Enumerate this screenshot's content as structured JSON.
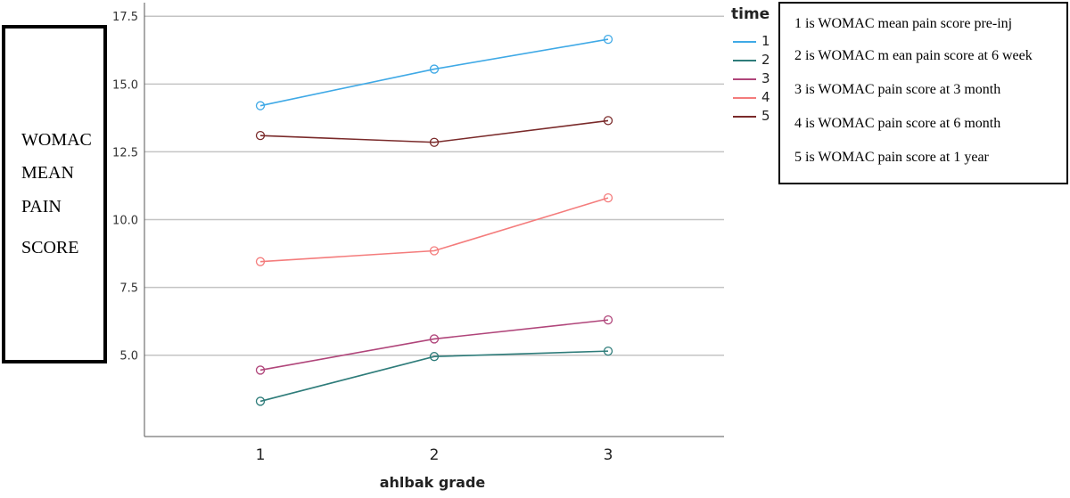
{
  "chart_data": {
    "type": "line",
    "categories": [
      "1",
      "2",
      "3"
    ],
    "xlabel": "ahlbak grade",
    "ylabel_lines": [
      "WOMAC",
      "MEAN",
      "PAIN",
      "SCORE"
    ],
    "ylim": [
      2.0,
      18.0
    ],
    "yticks": [
      "5.0",
      "7.5",
      "10.0",
      "12.5",
      "15.0",
      "17.5"
    ],
    "grid": true,
    "legend": {
      "title": "time",
      "placement": "top-right"
    },
    "series": [
      {
        "name": "1",
        "color": "#3fa9e6",
        "values": [
          14.2,
          15.55,
          16.65
        ]
      },
      {
        "name": "2",
        "color": "#2e7c7a",
        "values": [
          3.3,
          4.95,
          5.15
        ]
      },
      {
        "name": "3",
        "color": "#b0457a",
        "values": [
          4.45,
          5.6,
          6.3
        ]
      },
      {
        "name": "4",
        "color": "#f47c7c",
        "values": [
          8.45,
          8.85,
          10.8
        ]
      },
      {
        "name": "5",
        "color": "#7a2a2a",
        "values": [
          13.1,
          12.85,
          13.65
        ]
      }
    ]
  },
  "notes": [
    "1 is WOMAC mean pain score pre-inj",
    "2 is WOMAC m ean pain score at 6 week",
    "3 is WOMAC pain score at 3 month",
    "4 is WOMAC pain score at 6 month",
    "5 is WOMAC pain score at 1 year"
  ]
}
